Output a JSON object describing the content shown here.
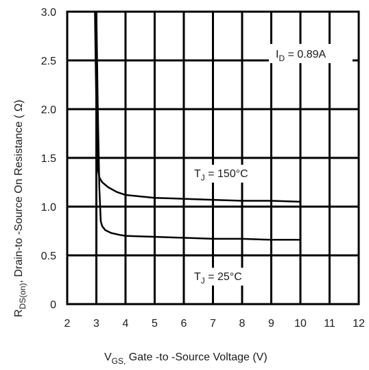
{
  "chart_data": {
    "type": "line",
    "title": "",
    "xlabel": {
      "main": "V",
      "sub": "GS,",
      "rest": " Gate -to -Source Voltage  (V)"
    },
    "ylabel": {
      "main": "R",
      "sub": "DS(on)",
      "rest": ", Drain-to -Source On Resistance ( Ω)"
    },
    "xlim": [
      2,
      12
    ],
    "ylim": [
      0,
      3.0
    ],
    "x_ticks": [
      "2",
      "3",
      "4",
      "5",
      "6",
      "7",
      "8",
      "9",
      "10",
      "11",
      "12"
    ],
    "y_ticks": [
      "0",
      "0.5",
      "1.0",
      "1.5",
      "2.0",
      "2.5",
      "3.0"
    ],
    "grid": true,
    "series": [
      {
        "name": "T_J = 150°C",
        "label": {
          "main": "T",
          "sub": "J",
          "rest": " = 150°C"
        },
        "color": "#000000",
        "x": [
          2.95,
          3.0,
          3.05,
          3.1,
          3.2,
          3.4,
          3.7,
          4.0,
          5.0,
          6.0,
          7.0,
          8.0,
          9.0,
          10.0
        ],
        "y": [
          3.0,
          2.0,
          1.4,
          1.3,
          1.25,
          1.2,
          1.15,
          1.12,
          1.09,
          1.08,
          1.07,
          1.06,
          1.06,
          1.05
        ]
      },
      {
        "name": "T_J = 25°C",
        "label": {
          "main": "T",
          "sub": "J",
          "rest": " = 25°C"
        },
        "color": "#000000",
        "x": [
          3.0,
          3.05,
          3.1,
          3.15,
          3.2,
          3.3,
          3.5,
          3.8,
          4.0,
          5.0,
          6.0,
          7.0,
          8.0,
          9.0,
          10.0
        ],
        "y": [
          3.0,
          2.0,
          1.2,
          0.85,
          0.8,
          0.76,
          0.73,
          0.71,
          0.7,
          0.69,
          0.68,
          0.67,
          0.67,
          0.66,
          0.66
        ]
      }
    ],
    "annotation": {
      "main": "I",
      "sub": "D",
      "rest": " = 0.89A"
    }
  }
}
